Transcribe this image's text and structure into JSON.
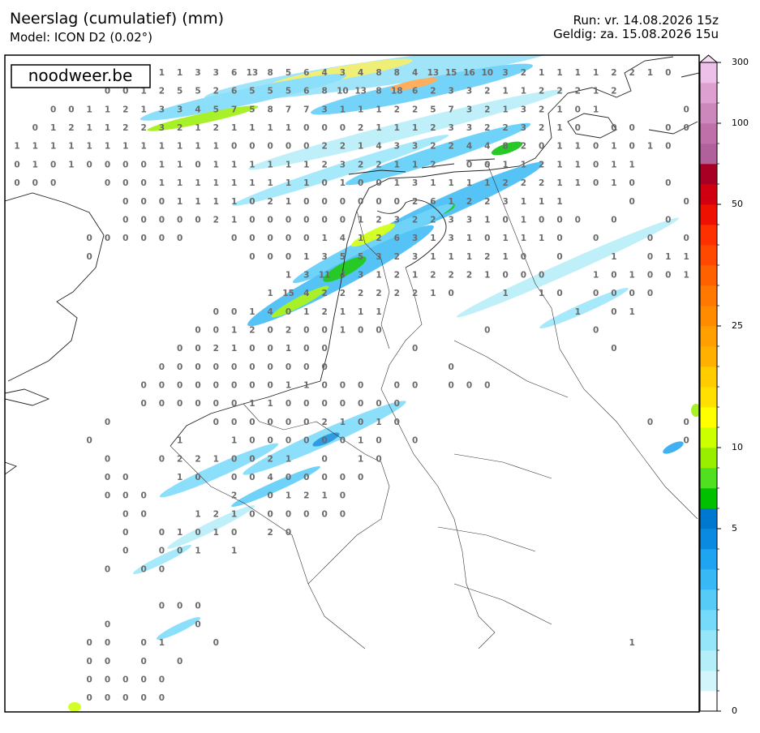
{
  "header": {
    "title": "Neerslag (cumulatief) (mm)",
    "model": "Model: ICON D2 (0.02°)",
    "run": "Run: vr. 14.08.2026 15z",
    "valid": "Geldig: za. 15.08.2026 15u",
    "logo": "noodweer.be"
  },
  "colorbar": {
    "ticks": [
      0,
      5,
      10,
      25,
      50,
      100,
      300
    ],
    "levels": [
      0,
      0.1,
      0.2,
      0.5,
      1,
      1.5,
      2,
      3,
      4,
      5,
      6,
      7,
      8,
      10,
      12,
      14,
      16,
      18,
      20,
      25,
      28,
      32,
      36,
      40,
      45,
      50,
      60,
      75,
      90,
      100,
      150,
      200,
      300
    ],
    "colors": [
      "#ffffff",
      "#d2f4fb",
      "#b4eef9",
      "#96e6fa",
      "#76dafa",
      "#56cbf8",
      "#38b9f5",
      "#1ea4f0",
      "#0a8ae0",
      "#0078d0",
      "#00c000",
      "#50e020",
      "#99ee00",
      "#ccff00",
      "#ffff00",
      "#ffe000",
      "#ffcc00",
      "#ffb000",
      "#ffa000",
      "#ff8c00",
      "#ff7800",
      "#ff6000",
      "#ff4800",
      "#ff3000",
      "#ee1000",
      "#d00010",
      "#a80024",
      "#b0609a",
      "#c070a8",
      "#cc88bb",
      "#dda0d0",
      "#ecc0e8",
      "#f8dcf6"
    ]
  },
  "grid": {
    "rows": [
      [
        null,
        null,
        null,
        null,
        null,
        null,
        null,
        null,
        1,
        1,
        3,
        3,
        6,
        13,
        8,
        5,
        6,
        4,
        3,
        4,
        8,
        8,
        4,
        13,
        15,
        16,
        10,
        3,
        2,
        1,
        1,
        1,
        1,
        2,
        2,
        1,
        0
      ],
      [
        null,
        null,
        null,
        null,
        null,
        0,
        0,
        1,
        2,
        5,
        5,
        2,
        6,
        5,
        5,
        5,
        6,
        8,
        10,
        13,
        8,
        18,
        6,
        2,
        3,
        3,
        2,
        1,
        1,
        2,
        2,
        2,
        1,
        2
      ],
      [
        null,
        null,
        0,
        0,
        1,
        1,
        2,
        1,
        3,
        3,
        4,
        5,
        7,
        5,
        8,
        7,
        7,
        3,
        1,
        1,
        1,
        2,
        2,
        5,
        7,
        3,
        2,
        1,
        3,
        2,
        1,
        0,
        1,
        null,
        null,
        null,
        null,
        0
      ],
      [
        null,
        0,
        1,
        2,
        1,
        1,
        2,
        2,
        3,
        2,
        1,
        2,
        1,
        1,
        1,
        1,
        0,
        0,
        0,
        2,
        1,
        1,
        1,
        2,
        3,
        3,
        2,
        2,
        3,
        2,
        1,
        0,
        null,
        0,
        0,
        null,
        0,
        0
      ],
      [
        1,
        1,
        1,
        1,
        1,
        1,
        1,
        1,
        1,
        1,
        1,
        1,
        0,
        0,
        0,
        0,
        0,
        2,
        2,
        1,
        4,
        3,
        3,
        2,
        2,
        4,
        4,
        8,
        2,
        0,
        1,
        1,
        0,
        1,
        0,
        1,
        0
      ],
      [
        0,
        1,
        0,
        1,
        0,
        0,
        0,
        0,
        1,
        1,
        0,
        1,
        1,
        1,
        1,
        1,
        1,
        2,
        3,
        2,
        2,
        1,
        1,
        2,
        null,
        0,
        0,
        1,
        1,
        2,
        1,
        1,
        0,
        1,
        1
      ],
      [
        0,
        0,
        0,
        null,
        null,
        0,
        0,
        0,
        1,
        1,
        1,
        1,
        1,
        1,
        1,
        1,
        1,
        0,
        1,
        0,
        0,
        1,
        3,
        1,
        1,
        1,
        1,
        2,
        2,
        2,
        1,
        1,
        0,
        1,
        0,
        null,
        0
      ],
      [
        null,
        null,
        null,
        null,
        null,
        null,
        0,
        0,
        0,
        1,
        1,
        1,
        1,
        0,
        2,
        1,
        0,
        0,
        0,
        0,
        0,
        0,
        2,
        6,
        1,
        2,
        2,
        3,
        1,
        1,
        1,
        null,
        null,
        null,
        0,
        null,
        null,
        0
      ],
      [
        null,
        null,
        null,
        null,
        null,
        null,
        0,
        0,
        0,
        0,
        0,
        2,
        1,
        0,
        0,
        0,
        0,
        0,
        0,
        1,
        2,
        3,
        2,
        2,
        3,
        3,
        1,
        0,
        1,
        0,
        0,
        0,
        null,
        0,
        null,
        null,
        0
      ],
      [
        null,
        null,
        null,
        null,
        0,
        0,
        0,
        0,
        0,
        0,
        null,
        null,
        0,
        0,
        0,
        0,
        0,
        1,
        4,
        1,
        2,
        6,
        3,
        1,
        3,
        1,
        0,
        1,
        1,
        1,
        0,
        null,
        0,
        null,
        null,
        0,
        null,
        0
      ],
      [
        null,
        null,
        null,
        null,
        0,
        null,
        null,
        null,
        null,
        null,
        null,
        null,
        null,
        0,
        0,
        0,
        1,
        3,
        5,
        5,
        3,
        2,
        3,
        1,
        1,
        1,
        2,
        1,
        0,
        null,
        0,
        null,
        null,
        1,
        null,
        0,
        1,
        1
      ],
      [
        null,
        null,
        null,
        null,
        null,
        null,
        null,
        null,
        null,
        null,
        null,
        null,
        null,
        null,
        null,
        1,
        3,
        11,
        4,
        3,
        1,
        2,
        1,
        2,
        2,
        2,
        1,
        0,
        0,
        0,
        null,
        null,
        1,
        0,
        1,
        0,
        0,
        1
      ],
      [
        null,
        null,
        null,
        null,
        null,
        null,
        null,
        null,
        null,
        null,
        null,
        null,
        null,
        null,
        1,
        15,
        4,
        2,
        2,
        2,
        2,
        2,
        2,
        1,
        0,
        null,
        null,
        1,
        null,
        1,
        0,
        null,
        0,
        0,
        0,
        0
      ],
      [
        null,
        null,
        null,
        null,
        null,
        null,
        null,
        null,
        null,
        null,
        null,
        0,
        0,
        1,
        4,
        0,
        1,
        2,
        1,
        1,
        1,
        null,
        null,
        null,
        null,
        null,
        null,
        null,
        null,
        null,
        null,
        1,
        null,
        0,
        1
      ],
      [
        null,
        null,
        null,
        null,
        null,
        null,
        null,
        null,
        null,
        null,
        0,
        0,
        1,
        2,
        0,
        2,
        0,
        0,
        1,
        0,
        0,
        null,
        null,
        null,
        null,
        null,
        0,
        null,
        null,
        null,
        null,
        null,
        0
      ],
      [
        null,
        null,
        null,
        null,
        null,
        null,
        null,
        null,
        null,
        0,
        0,
        2,
        1,
        0,
        0,
        1,
        0,
        0,
        null,
        null,
        null,
        null,
        0,
        null,
        null,
        null,
        null,
        null,
        null,
        null,
        null,
        null,
        null,
        0
      ],
      [
        null,
        null,
        null,
        null,
        null,
        null,
        null,
        null,
        0,
        0,
        0,
        0,
        0,
        0,
        0,
        0,
        0,
        0,
        null,
        null,
        null,
        null,
        null,
        null,
        0
      ],
      [
        null,
        null,
        null,
        null,
        null,
        null,
        null,
        0,
        0,
        0,
        0,
        0,
        0,
        0,
        0,
        1,
        1,
        0,
        0,
        0,
        null,
        0,
        0,
        null,
        0,
        0,
        0
      ],
      [
        null,
        null,
        null,
        null,
        null,
        null,
        null,
        0,
        0,
        0,
        0,
        0,
        0,
        1,
        1,
        0,
        0,
        0,
        0,
        0,
        0,
        0
      ],
      [
        null,
        null,
        null,
        null,
        null,
        0,
        null,
        null,
        null,
        null,
        null,
        0,
        0,
        0,
        0,
        0,
        0,
        2,
        1,
        0,
        1,
        0,
        null,
        null,
        null,
        null,
        null,
        null,
        null,
        null,
        null,
        null,
        null,
        null,
        null,
        0,
        null,
        0
      ],
      [
        null,
        null,
        null,
        null,
        0,
        null,
        null,
        null,
        null,
        1,
        null,
        null,
        1,
        0,
        0,
        0,
        0,
        0,
        0,
        1,
        0,
        null,
        0,
        null,
        null,
        null,
        null,
        null,
        null,
        null,
        null,
        null,
        null,
        null,
        null,
        null,
        null,
        0
      ],
      [
        null,
        null,
        null,
        null,
        null,
        0,
        null,
        null,
        0,
        2,
        2,
        1,
        0,
        0,
        2,
        1,
        null,
        0,
        null,
        1,
        0
      ],
      [
        null,
        null,
        null,
        null,
        null,
        0,
        0,
        null,
        null,
        1,
        0,
        null,
        0,
        0,
        4,
        0,
        0,
        0,
        0,
        0
      ],
      [
        null,
        null,
        null,
        null,
        null,
        0,
        0,
        0,
        null,
        null,
        null,
        null,
        2,
        null,
        0,
        1,
        2,
        1,
        0
      ],
      [
        null,
        null,
        null,
        null,
        null,
        null,
        0,
        0,
        null,
        null,
        1,
        2,
        1,
        0,
        0,
        0,
        0,
        0,
        0
      ],
      [
        null,
        null,
        null,
        null,
        null,
        null,
        0,
        null,
        0,
        1,
        0,
        1,
        0,
        null,
        2,
        0
      ],
      [
        null,
        null,
        null,
        null,
        null,
        null,
        0,
        null,
        0,
        0,
        1,
        null,
        1
      ],
      [
        null,
        null,
        null,
        null,
        null,
        0,
        null,
        0,
        0
      ],
      [],
      [
        null,
        null,
        null,
        null,
        null,
        null,
        null,
        null,
        0,
        0,
        0
      ],
      [
        null,
        null,
        null,
        null,
        null,
        0,
        null,
        null,
        null,
        null,
        0
      ],
      [
        null,
        null,
        null,
        null,
        0,
        0,
        null,
        0,
        1,
        null,
        null,
        0,
        null,
        null,
        null,
        null,
        null,
        null,
        null,
        null,
        null,
        null,
        null,
        null,
        null,
        null,
        null,
        null,
        null,
        null,
        null,
        null,
        null,
        null,
        1
      ],
      [
        null,
        null,
        null,
        null,
        0,
        0,
        null,
        0,
        null,
        0
      ],
      [
        null,
        null,
        null,
        null,
        0,
        0,
        0,
        0,
        0
      ],
      [
        null,
        null,
        null,
        null,
        0,
        0,
        0,
        0,
        0
      ]
    ]
  }
}
